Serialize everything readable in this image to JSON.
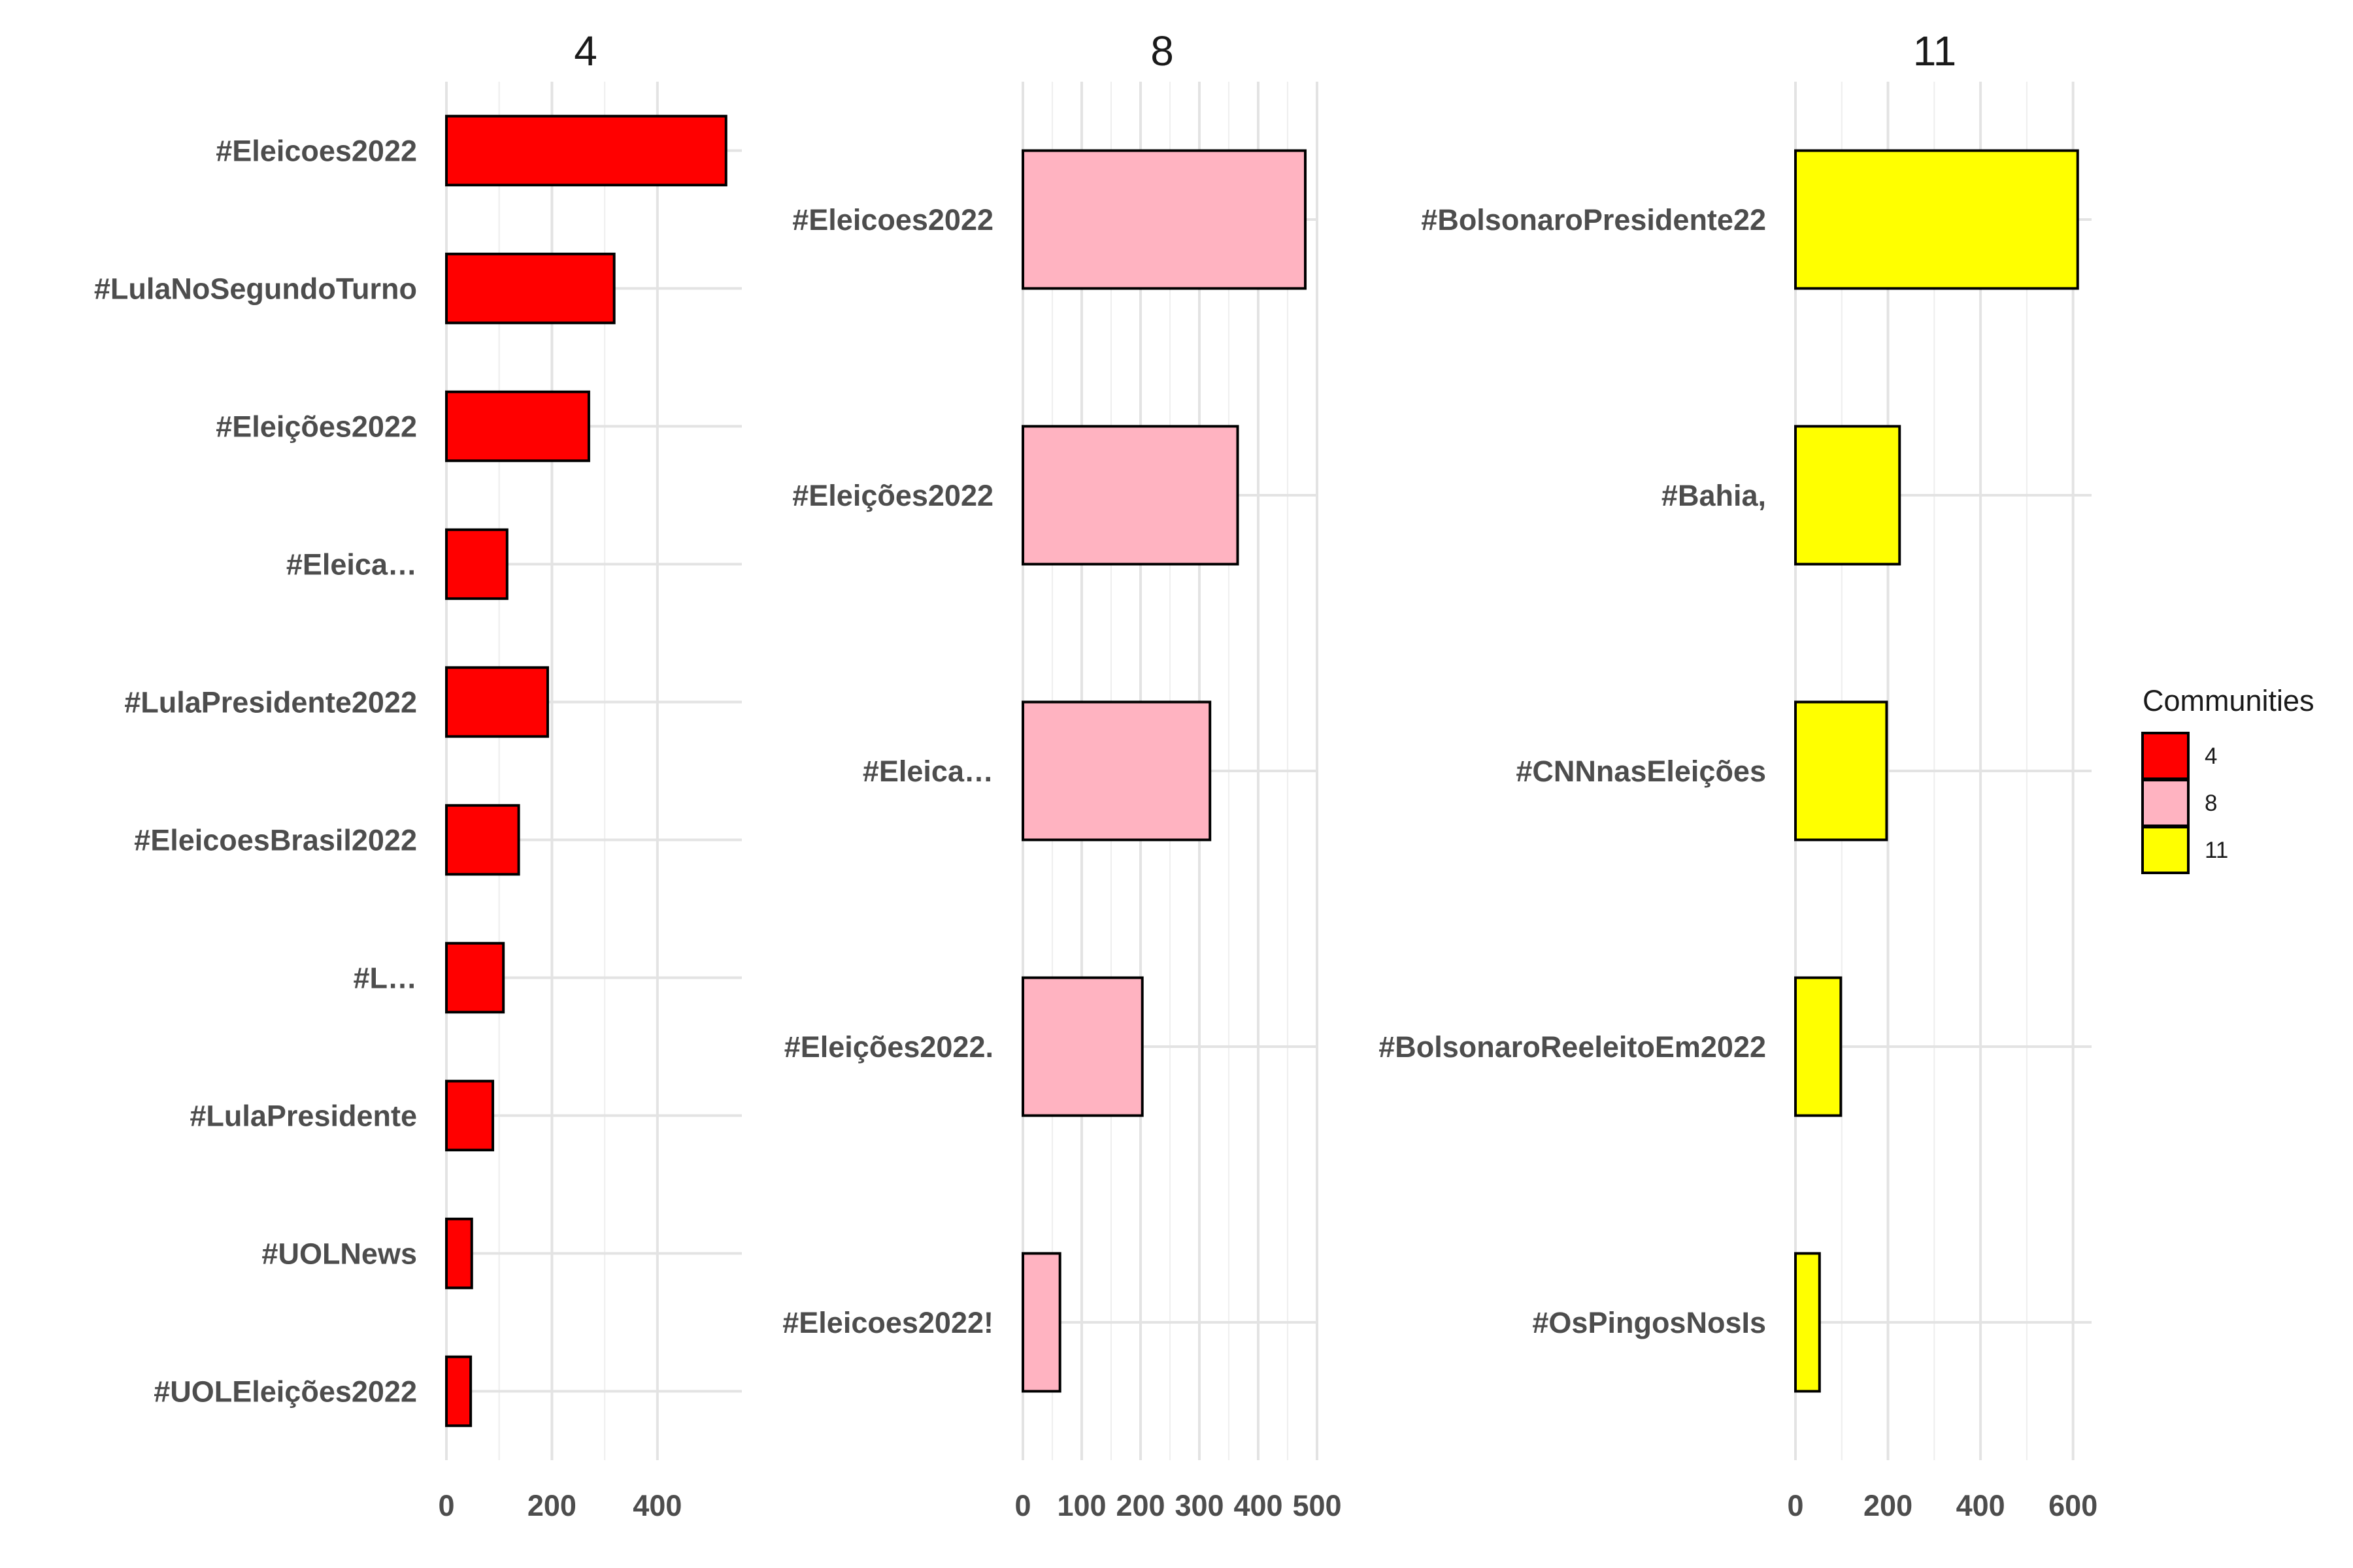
{
  "chart_data": {
    "type": "bar",
    "orientation": "horizontal",
    "grid": true,
    "legend": {
      "title": "Communities",
      "placement": "right",
      "entries": [
        {
          "label": "4",
          "color": "#ff0000"
        },
        {
          "label": "8",
          "color": "#ffb3c1"
        },
        {
          "label": "11",
          "color": "#ffff00"
        }
      ]
    },
    "facets": [
      {
        "title": "4",
        "color": "#ff0000",
        "xlim": [
          0,
          560
        ],
        "ticks": [
          0,
          200,
          400
        ],
        "categories": [
          "#Eleicoes2022",
          "#LulaNoSegundoTurno",
          "#Eleições2022",
          "#Eleica…",
          "#LulaPresidente2022",
          "#EleicoesBrasil2022",
          "#L…",
          "#LulaPresidente",
          "#UOLNews",
          "#UOLEleições2022"
        ],
        "values": [
          530,
          318,
          270,
          115,
          192,
          137,
          108,
          88,
          48,
          46
        ]
      },
      {
        "title": "8",
        "color": "#ffb3c1",
        "xlim": [
          0,
          500
        ],
        "ticks": [
          0,
          100,
          200,
          300,
          400,
          500
        ],
        "categories": [
          "#Eleicoes2022",
          "#Eleições2022",
          "#Eleica…",
          "#Eleições2022.",
          "#Eleicoes2022!"
        ],
        "values": [
          480,
          365,
          318,
          203,
          63
        ]
      },
      {
        "title": "11",
        "color": "#ffff00",
        "xlim": [
          0,
          640
        ],
        "ticks": [
          0,
          200,
          400,
          600
        ],
        "categories": [
          "#BolsonaroPresidente22",
          "#Bahia,",
          "#CNNnasEleições",
          "#BolsonaroReeleitoEm2022",
          "#OsPingosNosIs"
        ],
        "values": [
          610,
          225,
          197,
          98,
          52
        ]
      }
    ]
  }
}
